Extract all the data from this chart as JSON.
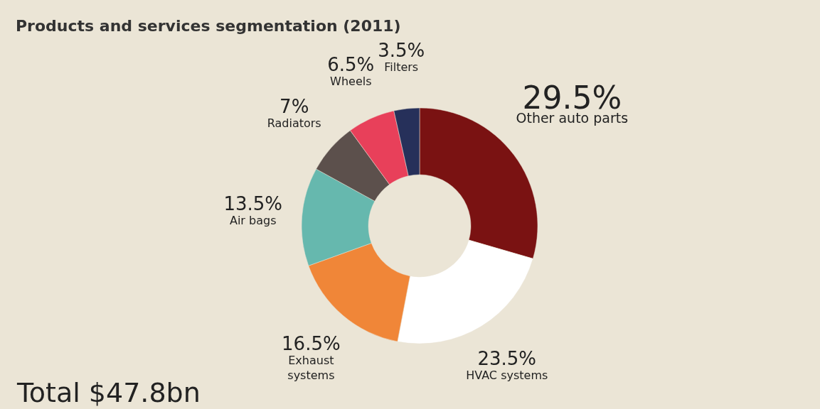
{
  "chart_data": {
    "type": "donut",
    "title": "Products and services segmentation (2011)",
    "categories": [
      "Other auto parts",
      "HVAC systems",
      "Exhaust systems",
      "Air bags",
      "Radiators",
      "Wheels",
      "Filters"
    ],
    "values": [
      29.5,
      23.5,
      16.5,
      13.5,
      7,
      6.5,
      3.5
    ],
    "value_labels": [
      "29.5%",
      "23.5%",
      "16.5%",
      "13.5%",
      "7%",
      "6.5%",
      "3.5%"
    ],
    "colors": [
      "#7a1212",
      "#ffffff",
      "#f08638",
      "#66b8ae",
      "#5c504c",
      "#e8405a",
      "#26305a"
    ],
    "annotations": [
      "Total $47.8bn"
    ]
  }
}
